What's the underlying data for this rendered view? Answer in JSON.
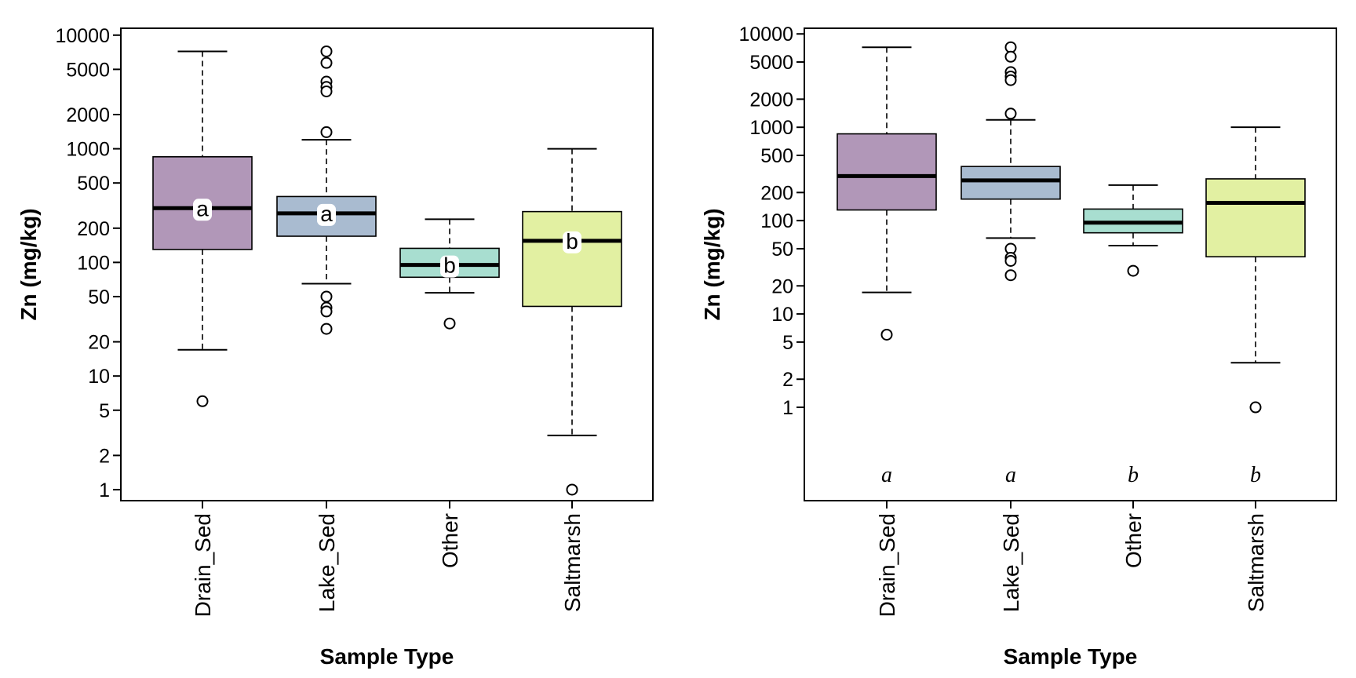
{
  "chart_data": [
    {
      "type": "box",
      "xlabel": "Sample Type",
      "ylabel": "Zn (mg/kg)",
      "yscale": "log",
      "ylim": [
        0.8,
        11500
      ],
      "yticks": [
        1,
        2,
        5,
        10,
        20,
        50,
        100,
        200,
        500,
        1000,
        2000,
        5000,
        10000
      ],
      "letter_style": "in-box",
      "categories": [
        "Drain_Sed",
        "Lake_Sed",
        "Other",
        "Saltmarsh"
      ],
      "colors": [
        "#b197b8",
        "#a9bbd0",
        "#a8ded0",
        "#e2f0a2"
      ],
      "boxes": [
        {
          "category": "Drain_Sed",
          "whisker_low": 17,
          "q1": 130,
          "median": 300,
          "q3": 850,
          "whisker_high": 7200,
          "outliers": [
            6
          ],
          "letter": "a"
        },
        {
          "category": "Lake_Sed",
          "whisker_low": 65,
          "q1": 170,
          "median": 270,
          "q3": 380,
          "whisker_high": 1200,
          "outliers": [
            7200,
            5700,
            3900,
            3500,
            3200,
            1400,
            50,
            40,
            37,
            26
          ],
          "letter": "a"
        },
        {
          "category": "Other",
          "whisker_low": 54,
          "q1": 74,
          "median": 95,
          "q3": 133,
          "whisker_high": 240,
          "outliers": [
            29
          ],
          "letter": "b"
        },
        {
          "category": "Saltmarsh",
          "whisker_low": 3,
          "q1": 41,
          "median": 155,
          "q3": 280,
          "whisker_high": 1000,
          "outliers": [
            1
          ],
          "letter": "b"
        }
      ]
    },
    {
      "type": "box",
      "xlabel": "Sample Type",
      "ylabel": "Zn (mg/kg)",
      "yscale": "log",
      "ylim": [
        0.1,
        11500
      ],
      "yticks": [
        1,
        2,
        5,
        10,
        20,
        50,
        100,
        200,
        500,
        1000,
        2000,
        5000,
        10000
      ],
      "letter_style": "below",
      "categories": [
        "Drain_Sed",
        "Lake_Sed",
        "Other",
        "Saltmarsh"
      ],
      "colors": [
        "#b197b8",
        "#a9bbd0",
        "#a8ded0",
        "#e2f0a2"
      ],
      "boxes": [
        {
          "category": "Drain_Sed",
          "whisker_low": 17,
          "q1": 130,
          "median": 300,
          "q3": 850,
          "whisker_high": 7200,
          "outliers": [
            6
          ],
          "letter": "a"
        },
        {
          "category": "Lake_Sed",
          "whisker_low": 65,
          "q1": 170,
          "median": 270,
          "q3": 380,
          "whisker_high": 1200,
          "outliers": [
            7200,
            5700,
            3900,
            3500,
            3200,
            1400,
            50,
            40,
            37,
            26
          ],
          "letter": "a"
        },
        {
          "category": "Other",
          "whisker_low": 54,
          "q1": 74,
          "median": 95,
          "q3": 133,
          "whisker_high": 240,
          "outliers": [
            29
          ],
          "letter": "b"
        },
        {
          "category": "Saltmarsh",
          "whisker_low": 3,
          "q1": 41,
          "median": 155,
          "q3": 280,
          "whisker_high": 1000,
          "outliers": [
            1
          ],
          "letter": "b"
        }
      ]
    }
  ]
}
